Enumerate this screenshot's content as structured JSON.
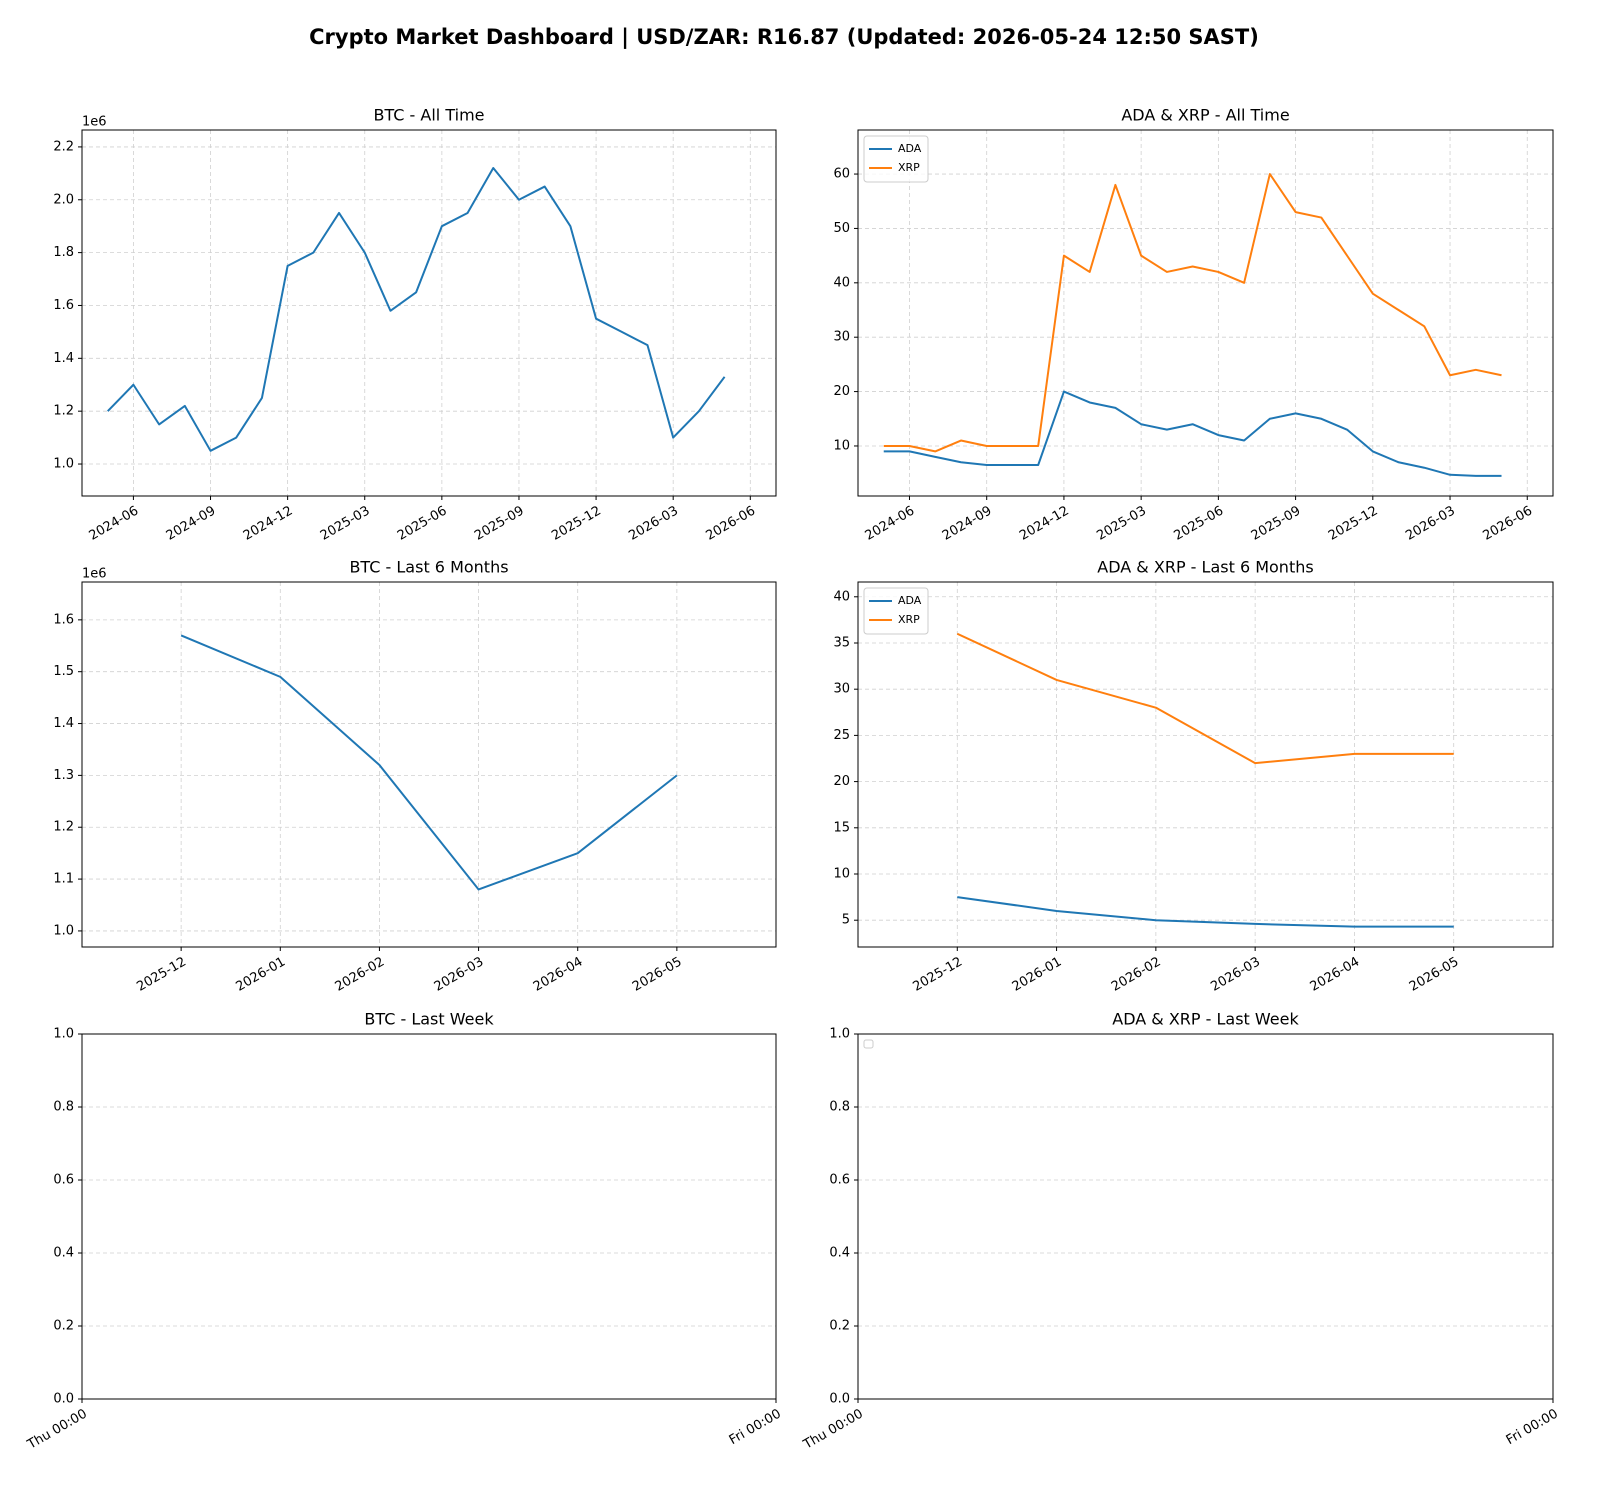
{
  "title": "Crypto Market Dashboard | USD/ZAR: R16.87 (Updated: 2026-05-24 12:50 SAST)",
  "chart_data": [
    {
      "type": "line",
      "title": "BTC - All Time",
      "x": [
        "2024-05",
        "2024-06",
        "2024-07",
        "2024-08",
        "2024-09",
        "2024-10",
        "2024-11",
        "2024-12",
        "2025-01",
        "2025-02",
        "2025-03",
        "2025-04",
        "2025-05",
        "2025-06",
        "2025-07",
        "2025-08",
        "2025-09",
        "2025-10",
        "2025-11",
        "2025-12",
        "2026-01",
        "2026-02",
        "2026-03",
        "2026-04",
        "2026-05"
      ],
      "series": [
        {
          "color": "#1f77b4",
          "values": [
            1200000,
            1300000,
            1150000,
            1220000,
            1050000,
            1100000,
            1250000,
            1750000,
            1800000,
            1950000,
            1800000,
            1580000,
            1650000,
            1900000,
            1950000,
            2120000,
            2000000,
            2050000,
            1900000,
            1550000,
            1500000,
            1450000,
            1100000,
            1200000,
            1330000
          ]
        }
      ],
      "xlim": [
        "2024-04",
        "2026-07"
      ],
      "xticks": [
        "2024-06",
        "2024-09",
        "2024-12",
        "2025-03",
        "2025-06",
        "2025-09",
        "2025-12",
        "2026-03",
        "2026-06"
      ],
      "ylim": [
        879000,
        2264000
      ],
      "yticks": [
        {
          "value": 1000000,
          "label": "1.0"
        },
        {
          "value": 1200000,
          "label": "1.2"
        },
        {
          "value": 1400000,
          "label": "1.4"
        },
        {
          "value": 1600000,
          "label": "1.6"
        },
        {
          "value": 1800000,
          "label": "1.8"
        },
        {
          "value": 2000000,
          "label": "2.0"
        },
        {
          "value": 2200000,
          "label": "2.2"
        }
      ],
      "y_offset_label": "1e6",
      "grid": true
    },
    {
      "type": "line",
      "title": "ADA & XRP - All Time",
      "x": [
        "2024-05",
        "2024-06",
        "2024-07",
        "2024-08",
        "2024-09",
        "2024-10",
        "2024-11",
        "2024-12",
        "2025-01",
        "2025-02",
        "2025-03",
        "2025-04",
        "2025-05",
        "2025-06",
        "2025-07",
        "2025-08",
        "2025-09",
        "2025-10",
        "2025-11",
        "2025-12",
        "2026-01",
        "2026-02",
        "2026-03",
        "2026-04",
        "2026-05"
      ],
      "series": [
        {
          "name": "ADA",
          "color": "#1f77b4",
          "values": [
            9,
            9,
            8,
            7,
            6.5,
            6.5,
            6.5,
            20,
            18,
            17,
            14,
            13,
            14,
            12,
            11,
            15,
            16,
            15,
            13,
            9,
            7,
            6,
            4.7,
            4.5,
            4.5
          ]
        },
        {
          "name": "XRP",
          "color": "#ff7f0e",
          "values": [
            10,
            10,
            9,
            11,
            10,
            10,
            10,
            45,
            42,
            58,
            45,
            42,
            43,
            42,
            40,
            60,
            53,
            52,
            45,
            38,
            35,
            32,
            23,
            24,
            23
          ]
        }
      ],
      "xlim": [
        "2024-04",
        "2026-07"
      ],
      "xticks": [
        "2024-06",
        "2024-09",
        "2024-12",
        "2025-03",
        "2025-06",
        "2025-09",
        "2025-12",
        "2026-03",
        "2026-06"
      ],
      "ylim": [
        0.8,
        68.1
      ],
      "yticks": [
        10,
        20,
        30,
        40,
        50,
        60
      ],
      "legend": "upper left",
      "grid": true
    },
    {
      "type": "line",
      "title": "BTC - Last 6 Months",
      "x": [
        "2025-12",
        "2026-01",
        "2026-02",
        "2026-03",
        "2026-04",
        "2026-05"
      ],
      "series": [
        {
          "color": "#1f77b4",
          "values": [
            1570000,
            1490000,
            1320000,
            1080000,
            1150000,
            1300000
          ]
        }
      ],
      "xlim": [
        "2025-11",
        "2026-06"
      ],
      "xticks": [
        "2025-12",
        "2026-01",
        "2026-02",
        "2026-03",
        "2026-04",
        "2026-05"
      ],
      "ylim": [
        969000,
        1673000
      ],
      "yticks": [
        {
          "value": 1000000,
          "label": "1.0"
        },
        {
          "value": 1100000,
          "label": "1.1"
        },
        {
          "value": 1200000,
          "label": "1.2"
        },
        {
          "value": 1300000,
          "label": "1.3"
        },
        {
          "value": 1400000,
          "label": "1.4"
        },
        {
          "value": 1500000,
          "label": "1.5"
        },
        {
          "value": 1600000,
          "label": "1.6"
        }
      ],
      "y_offset_label": "1e6",
      "grid": true
    },
    {
      "type": "line",
      "title": "ADA & XRP - Last 6 Months",
      "x": [
        "2025-12",
        "2026-01",
        "2026-02",
        "2026-03",
        "2026-04",
        "2026-05"
      ],
      "series": [
        {
          "name": "ADA",
          "color": "#1f77b4",
          "values": [
            7.5,
            6,
            5,
            4.6,
            4.3,
            4.3
          ]
        },
        {
          "name": "XRP",
          "color": "#ff7f0e",
          "values": [
            36,
            31,
            28,
            22,
            23,
            23
          ]
        }
      ],
      "xlim": [
        "2025-11",
        "2026-06"
      ],
      "xticks": [
        "2025-12",
        "2026-01",
        "2026-02",
        "2026-03",
        "2026-04",
        "2026-05"
      ],
      "ylim": [
        2.1,
        41.6
      ],
      "yticks": [
        5,
        10,
        15,
        20,
        25,
        30,
        35,
        40
      ],
      "legend": "upper left",
      "grid": true
    },
    {
      "type": "line",
      "title": "BTC - Last Week",
      "x": [],
      "series": [],
      "xticks": [
        "Thu 00:00",
        "Fri 00:00"
      ],
      "ylim": [
        0,
        1
      ],
      "yticks": [
        {
          "value": 0,
          "label": "0.0"
        },
        {
          "value": 0.2,
          "label": "0.2"
        },
        {
          "value": 0.4,
          "label": "0.4"
        },
        {
          "value": 0.6,
          "label": "0.6"
        },
        {
          "value": 0.8,
          "label": "0.8"
        },
        {
          "value": 1,
          "label": "1.0"
        }
      ],
      "grid": true
    },
    {
      "type": "line",
      "title": "ADA & XRP - Last Week",
      "x": [],
      "series": [],
      "xticks": [
        "Thu 00:00",
        "Fri 00:00"
      ],
      "ylim": [
        0,
        1
      ],
      "yticks": [
        {
          "value": 0,
          "label": "0.0"
        },
        {
          "value": 0.2,
          "label": "0.2"
        },
        {
          "value": 0.4,
          "label": "0.4"
        },
        {
          "value": 0.6,
          "label": "0.6"
        },
        {
          "value": 0.8,
          "label": "0.8"
        },
        {
          "value": 1,
          "label": "1.0"
        }
      ],
      "legend": "upper left",
      "grid": true
    }
  ]
}
